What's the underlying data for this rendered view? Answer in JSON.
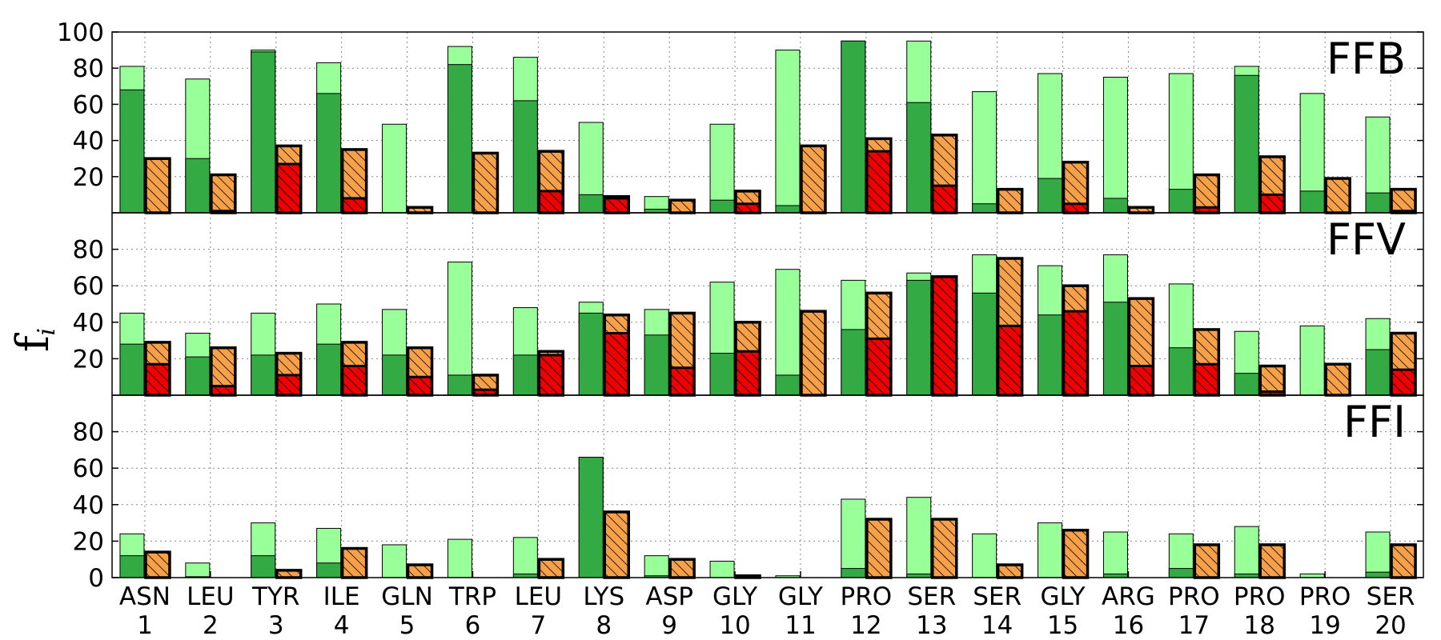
{
  "chart_data": {
    "type": "bar",
    "ylabel": "f",
    "ylabel_subscript": "i",
    "residues": [
      "ASN",
      "LEU",
      "TYR",
      "ILE",
      "GLN",
      "TRP",
      "LEU",
      "LYS",
      "ASP",
      "GLY",
      "GLY",
      "PRO",
      "SER",
      "SER",
      "GLY",
      "ARG",
      "PRO",
      "PRO",
      "PRO",
      "SER"
    ],
    "positions": [
      "1",
      "2",
      "3",
      "4",
      "5",
      "6",
      "7",
      "8",
      "9",
      "10",
      "11",
      "12",
      "13",
      "14",
      "15",
      "16",
      "17",
      "18",
      "19",
      "20"
    ],
    "colors": {
      "light_green": "#99ff99",
      "dark_green": "#33aa44",
      "orange": "#f7a04a",
      "red": "#ee0000",
      "hatch": "#000000"
    },
    "panels": [
      {
        "title": "FFB",
        "ylim": [
          0,
          100
        ],
        "yticks": [
          "20",
          "40",
          "60",
          "80",
          "100"
        ],
        "series": [
          {
            "name": "green_total",
            "values": [
              81,
              74,
              90,
              83,
              49,
              92,
              86,
              50,
              9,
              49,
              90,
              95,
              95,
              67,
              77,
              75,
              77,
              81,
              66,
              53
            ]
          },
          {
            "name": "green_dark",
            "values": [
              68,
              30,
              89,
              66,
              0,
              82,
              62,
              10,
              2,
              7,
              4,
              95,
              61,
              5,
              19,
              8,
              13,
              76,
              12,
              11
            ]
          },
          {
            "name": "orange_total",
            "values": [
              30,
              21,
              37,
              35,
              3,
              33,
              34,
              9,
              7,
              12,
              37,
              41,
              43,
              13,
              28,
              3,
              21,
              31,
              19,
              13
            ]
          },
          {
            "name": "red",
            "values": [
              0,
              1,
              27,
              8,
              0,
              0,
              12,
              8,
              0,
              5,
              0,
              34,
              15,
              0,
              5,
              0,
              3,
              10,
              0,
              1
            ]
          }
        ]
      },
      {
        "title": "FFV",
        "ylim": [
          0,
          100
        ],
        "yticks": [
          "20",
          "40",
          "60",
          "80"
        ],
        "series": [
          {
            "name": "green_total",
            "values": [
              45,
              34,
              45,
              50,
              47,
              73,
              48,
              51,
              47,
              62,
              69,
              63,
              67,
              77,
              71,
              77,
              61,
              35,
              38,
              42
            ]
          },
          {
            "name": "green_dark",
            "values": [
              28,
              21,
              22,
              28,
              22,
              11,
              22,
              45,
              33,
              23,
              11,
              36,
              63,
              56,
              44,
              51,
              26,
              12,
              0,
              25
            ]
          },
          {
            "name": "orange_total",
            "values": [
              29,
              26,
              23,
              29,
              26,
              11,
              24,
              44,
              45,
              40,
              46,
              56,
              65,
              75,
              60,
              53,
              36,
              16,
              17,
              34
            ]
          },
          {
            "name": "red",
            "values": [
              17,
              5,
              11,
              16,
              10,
              3,
              22,
              34,
              15,
              24,
              0,
              31,
              65,
              38,
              46,
              16,
              17,
              2,
              0,
              14
            ]
          }
        ]
      },
      {
        "title": "FFI",
        "ylim": [
          0,
          100
        ],
        "yticks": [
          "0",
          "20",
          "40",
          "60",
          "80"
        ],
        "series": [
          {
            "name": "green_total",
            "values": [
              24,
              8,
              30,
              27,
              18,
              21,
              22,
              66,
              12,
              9,
              1,
              43,
              44,
              24,
              30,
              25,
              24,
              28,
              2,
              25
            ]
          },
          {
            "name": "green_dark",
            "values": [
              12,
              0.5,
              12,
              8,
              0,
              0,
              2,
              66,
              1,
              0,
              0,
              5,
              2,
              0,
              0,
              2,
              5,
              2,
              0,
              3
            ]
          },
          {
            "name": "orange_total",
            "values": [
              14,
              0,
              4,
              16,
              7,
              0,
              10,
              36,
              10,
              1,
              0,
              32,
              32,
              7,
              26,
              0,
              18,
              18,
              0,
              18
            ]
          },
          {
            "name": "red",
            "values": [
              0,
              0,
              0,
              0,
              0,
              0,
              0,
              0,
              0,
              0,
              0,
              0,
              0,
              0,
              0,
              0,
              0,
              0,
              0,
              0
            ]
          }
        ]
      }
    ]
  }
}
